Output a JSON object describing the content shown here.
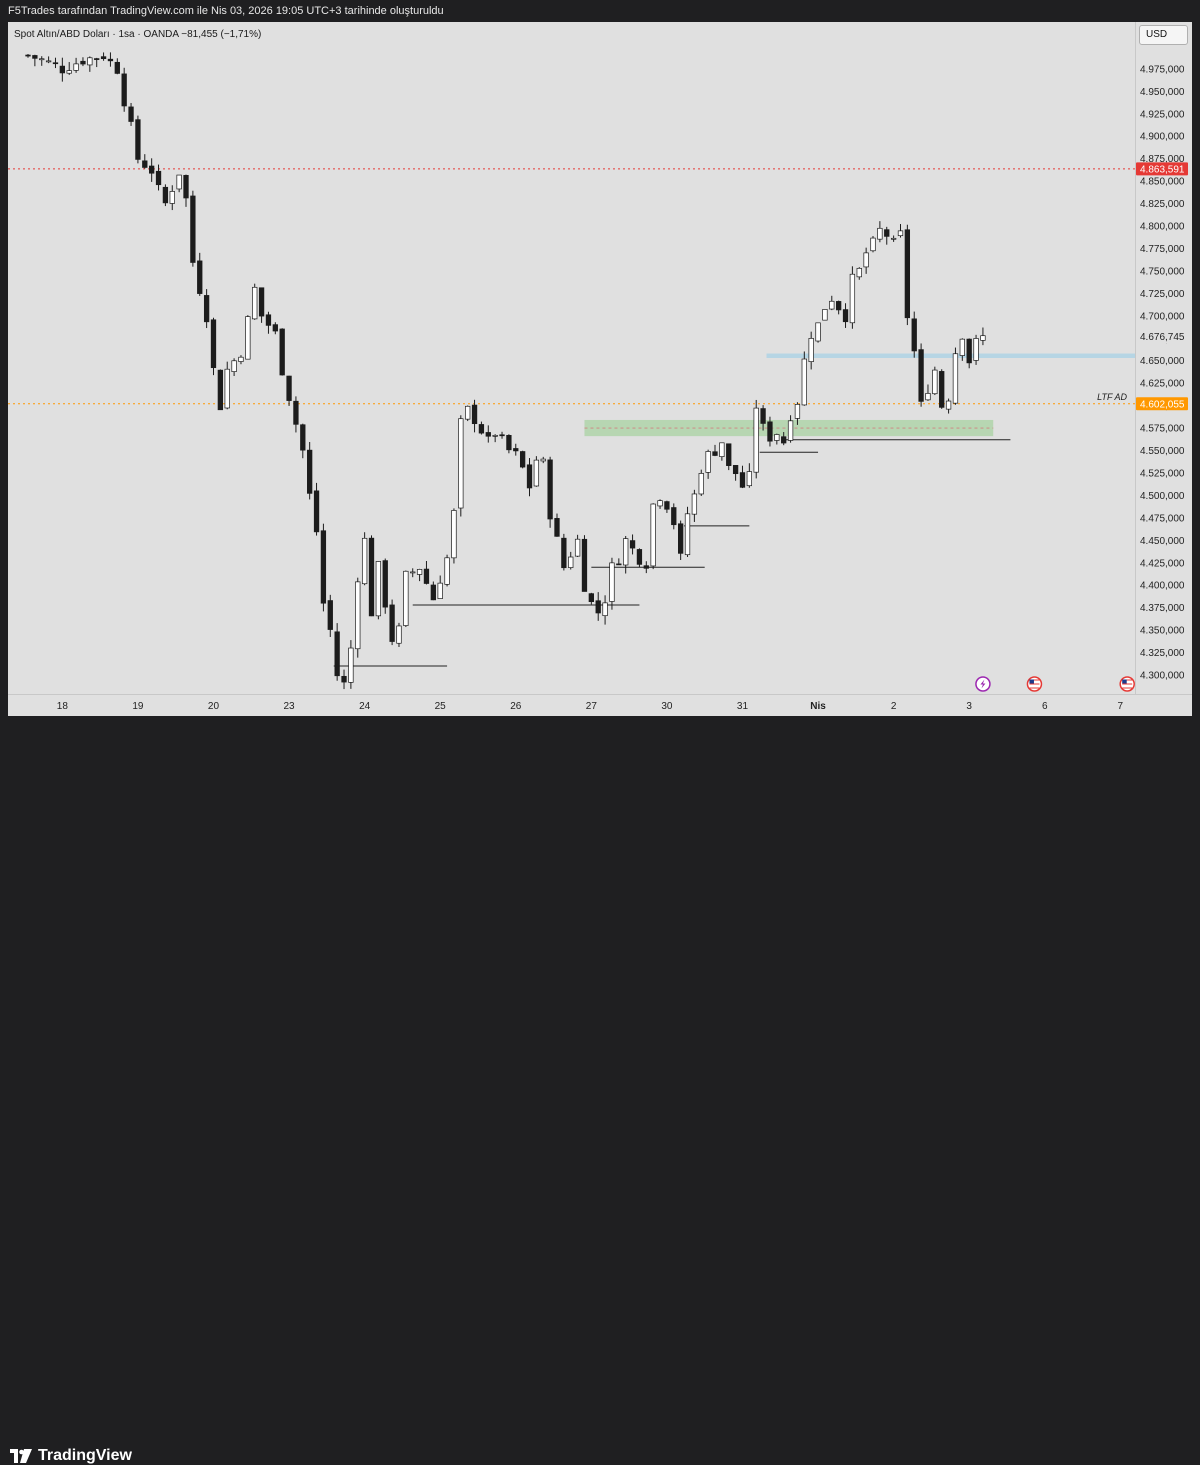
{
  "header": {
    "title": "F5Trades tarafından TradingView.com ile Nis 03, 2026 19:05 UTC+3 tarihinde oluşturuldu"
  },
  "legend": {
    "text": "Spot Altın/ABD Doları · 1sa · OANDA  −81,455 (−1,71%)"
  },
  "currency_button": "USD",
  "footer": {
    "brand": "TradingView"
  },
  "chart_data": {
    "type": "candlestick",
    "symbol": "Spot Altın/ABD Doları",
    "interval": "1sa",
    "source": "OANDA",
    "change": "−81,455 (−1,71%)",
    "ylim": [
      4280,
      5000
    ],
    "y_ticks": [
      "4.975,000",
      "4.950,000",
      "4.925,000",
      "4.900,000",
      "4.875,000",
      "4.850,000",
      "4.825,000",
      "4.800,000",
      "4.775,000",
      "4.750,000",
      "4.725,000",
      "4.700,000",
      "4.675,000",
      "4.650,000",
      "4.625,000",
      "4.600,000",
      "4.575,000",
      "4.550,000",
      "4.525,000",
      "4.500,000",
      "4.475,000",
      "4.450,000",
      "4.425,000",
      "4.400,000",
      "4.375,000",
      "4.350,000",
      "4.325,000",
      "4.300,000"
    ],
    "y_tick_values": [
      4975,
      4950,
      4925,
      4900,
      4875,
      4850,
      4825,
      4800,
      4775,
      4750,
      4725,
      4700,
      4675,
      4650,
      4625,
      4600,
      4575,
      4550,
      4525,
      4500,
      4475,
      4450,
      4425,
      4400,
      4375,
      4350,
      4325,
      4300
    ],
    "x_ticks": [
      "18",
      "19",
      "20",
      "23",
      "24",
      "25",
      "26",
      "27",
      "30",
      "31",
      "Nis",
      "2",
      "3",
      "6",
      "7"
    ],
    "x_tick_index": [
      5,
      16,
      27,
      38,
      49,
      60,
      71,
      82,
      93,
      104,
      115,
      126,
      137,
      148,
      159
    ],
    "price_labels": [
      {
        "text": "4.863,591",
        "value": 4863.591,
        "color": "#e53935",
        "line": "dotted"
      },
      {
        "text": "4.676,745",
        "value": 4676.745,
        "color": "#e0e0e0",
        "line": "none"
      },
      {
        "text": "4.602,055",
        "value": 4602.055,
        "color": "#ff9800",
        "line": "dotted"
      }
    ],
    "annotations": [
      {
        "text": "LTF AD",
        "value": 4602.055
      }
    ],
    "zones": [
      {
        "name": "blue-zone",
        "x0": 107.5,
        "x1": 162.5,
        "y0": 4653,
        "y1": 4658,
        "color": "#a8d2e6"
      },
      {
        "name": "green-zone",
        "x0": 81,
        "x1": 140.5,
        "y0": 4566,
        "y1": 4584,
        "color": "#a9d3a3"
      }
    ],
    "levels": [
      {
        "x0": 44.5,
        "x1": 61,
        "y": 4310
      },
      {
        "x0": 56,
        "x1": 89,
        "y": 4378
      },
      {
        "x0": 82,
        "x1": 98.5,
        "y": 4420
      },
      {
        "x0": 95.5,
        "x1": 105,
        "y": 4466
      },
      {
        "x0": 106.5,
        "x1": 115,
        "y": 4548
      },
      {
        "x0": 110,
        "x1": 143,
        "y": 4562
      }
    ],
    "events": [
      {
        "name": "flash-event-icon",
        "x": 139
      },
      {
        "name": "us-flag-icon",
        "x": 146.5
      },
      {
        "name": "us-flag-icon",
        "x": 160
      }
    ],
    "anchors": [
      [
        0,
        4990
      ],
      [
        2,
        4985
      ],
      [
        5,
        4975
      ],
      [
        8,
        4985
      ],
      [
        11,
        4990
      ],
      [
        13,
        4975
      ],
      [
        14,
        4940
      ],
      [
        15,
        4910
      ],
      [
        16,
        4875
      ],
      [
        18,
        4862
      ],
      [
        19,
        4840
      ],
      [
        20,
        4825
      ],
      [
        22,
        4860
      ],
      [
        23,
        4830
      ],
      [
        24,
        4760
      ],
      [
        26,
        4700
      ],
      [
        27,
        4640
      ],
      [
        27.5,
        4580
      ],
      [
        28,
        4600
      ],
      [
        29,
        4640
      ],
      [
        31,
        4660
      ],
      [
        33,
        4730
      ],
      [
        34,
        4700
      ],
      [
        36,
        4680
      ],
      [
        37,
        4640
      ],
      [
        38,
        4610
      ],
      [
        39,
        4580
      ],
      [
        40,
        4550
      ],
      [
        41,
        4500
      ],
      [
        42,
        4460
      ],
      [
        43,
        4380
      ],
      [
        44,
        4350
      ],
      [
        45,
        4300
      ],
      [
        46,
        4290
      ],
      [
        47,
        4330
      ],
      [
        48,
        4410
      ],
      [
        49,
        4450
      ],
      [
        50,
        4370
      ],
      [
        51,
        4420
      ],
      [
        53,
        4340
      ],
      [
        54,
        4350
      ],
      [
        55,
        4410
      ],
      [
        57,
        4420
      ],
      [
        59,
        4385
      ],
      [
        61,
        4430
      ],
      [
        62,
        4480
      ],
      [
        63,
        4580
      ],
      [
        64,
        4595
      ],
      [
        65,
        4585
      ],
      [
        67,
        4560
      ],
      [
        68,
        4570
      ],
      [
        70,
        4550
      ],
      [
        71,
        4545
      ],
      [
        72,
        4530
      ],
      [
        73,
        4510
      ],
      [
        74,
        4540
      ],
      [
        75,
        4535
      ],
      [
        76,
        4480
      ],
      [
        77,
        4450
      ],
      [
        78,
        4420
      ],
      [
        79,
        4435
      ],
      [
        80,
        4450
      ],
      [
        81,
        4400
      ],
      [
        82,
        4380
      ],
      [
        83,
        4370
      ],
      [
        84,
        4385
      ],
      [
        85,
        4420
      ],
      [
        86,
        4430
      ],
      [
        87,
        4450
      ],
      [
        88,
        4440
      ],
      [
        89,
        4430
      ],
      [
        90,
        4425
      ],
      [
        91,
        4490
      ],
      [
        92,
        4500
      ],
      [
        93,
        4490
      ],
      [
        94,
        4470
      ],
      [
        95,
        4430
      ],
      [
        96,
        4480
      ],
      [
        97,
        4500
      ],
      [
        98,
        4530
      ],
      [
        99,
        4545
      ],
      [
        100,
        4550
      ],
      [
        101,
        4560
      ],
      [
        102,
        4530
      ],
      [
        103,
        4525
      ],
      [
        104,
        4510
      ],
      [
        105,
        4520
      ],
      [
        106,
        4600
      ],
      [
        107,
        4575
      ],
      [
        108,
        4565
      ],
      [
        109,
        4570
      ],
      [
        110,
        4560
      ],
      [
        111,
        4590
      ],
      [
        112,
        4605
      ],
      [
        113,
        4650
      ],
      [
        114,
        4680
      ],
      [
        115,
        4690
      ],
      [
        116,
        4710
      ],
      [
        117,
        4720
      ],
      [
        118,
        4710
      ],
      [
        119,
        4700
      ],
      [
        120,
        4740
      ],
      [
        121,
        4750
      ],
      [
        122,
        4770
      ],
      [
        123,
        4780
      ],
      [
        124,
        4795
      ],
      [
        125,
        4790
      ],
      [
        126,
        4780
      ],
      [
        127,
        4790
      ],
      [
        128,
        4700
      ],
      [
        129,
        4660
      ],
      [
        130,
        4600
      ],
      [
        131,
        4620
      ],
      [
        132,
        4640
      ],
      [
        133,
        4600
      ],
      [
        134,
        4610
      ],
      [
        135,
        4660
      ],
      [
        136,
        4680
      ],
      [
        137,
        4650
      ],
      [
        138,
        4670
      ],
      [
        139,
        4676
      ]
    ]
  }
}
